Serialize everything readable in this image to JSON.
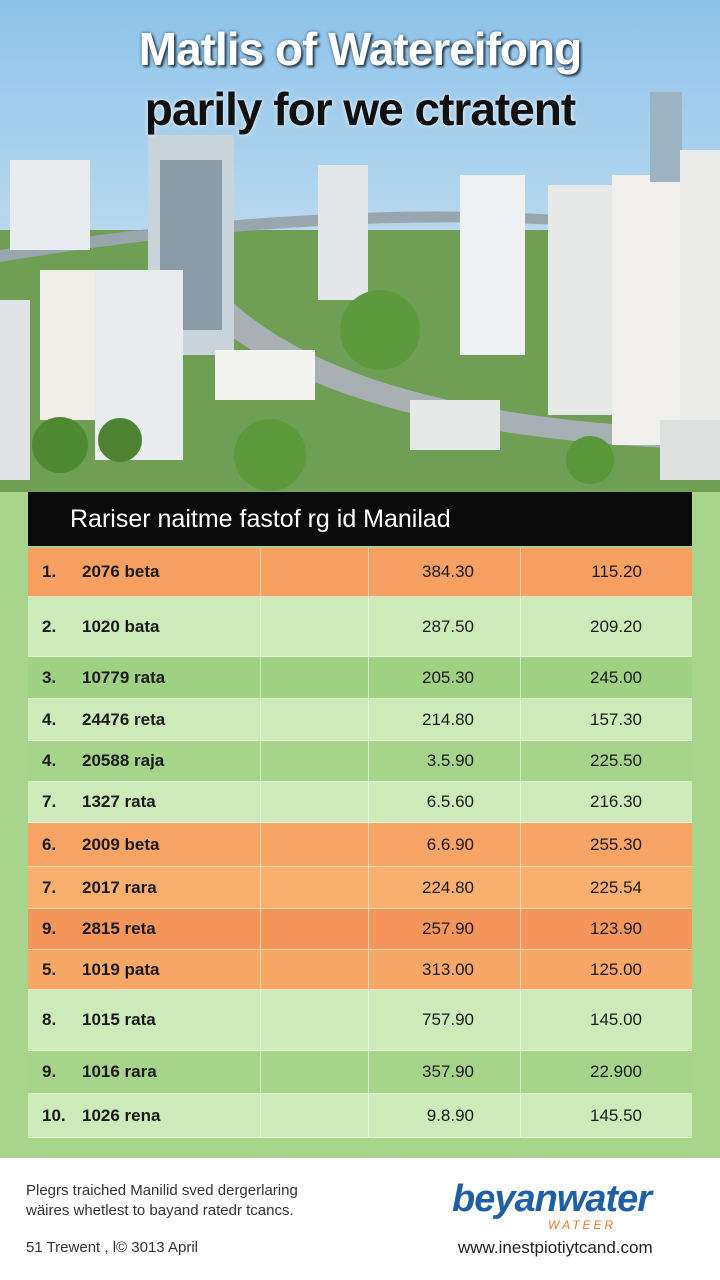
{
  "header": {
    "title_line1": "Matlis of Watereifong",
    "title_line2": "parily for we ctratent"
  },
  "table": {
    "title": "Rariser naitme fastof rg id Manilad",
    "rows": [
      {
        "rank": "1.",
        "label": "2076 beta",
        "value1": "384.30",
        "value2": "115.20",
        "color": "#f7a062"
      },
      {
        "rank": "2.",
        "label": "1020 bata",
        "value1": "287.50",
        "value2": "209.20",
        "color": "#cdeab9"
      },
      {
        "rank": "3.",
        "label": "10779 rata",
        "value1": "205.30",
        "value2": "245.00",
        "color": "#9fd183"
      },
      {
        "rank": "4.",
        "label": "24476 reta",
        "value1": "214.80",
        "value2": "157.30",
        "color": "#cdeab9"
      },
      {
        "rank": "4.",
        "label": "20588 raja",
        "value1": "3.5.90",
        "value2": "225.50",
        "color": "#a6d48a"
      },
      {
        "rank": "7.",
        "label": "1327 rata",
        "value1": "6.5.60",
        "value2": "216.30",
        "color": "#cdeab9"
      },
      {
        "rank": "6.",
        "label": "2009 beta",
        "value1": "6.6.90",
        "value2": "255.30",
        "color": "#f8a464"
      },
      {
        "rank": "7.",
        "label": "2017 rara",
        "value1": "224.80",
        "value2": "225.54",
        "color": "#f9b06f"
      },
      {
        "rank": "9.",
        "label": "2815 reta",
        "value1": "257.90",
        "value2": "123.90",
        "color": "#f4955a"
      },
      {
        "rank": "5.",
        "label": "1019 pata",
        "value1": "313.00",
        "value2": "125.00",
        "color": "#f8a866"
      },
      {
        "rank": "8.",
        "label": "1015 rata",
        "value1": "757.90",
        "value2": "145.00",
        "color": "#cdeab9"
      },
      {
        "rank": "9.",
        "label": "1016 rara",
        "value1": "357.90",
        "value2": "22.900",
        "color": "#a6d48a"
      },
      {
        "rank": "10.",
        "label": "1026 rena",
        "value1": "9.8.90",
        "value2": "145.50",
        "color": "#cdeab9"
      }
    ]
  },
  "footer": {
    "note_line1": "Plegrs traiched Manilid sved dergerlaring",
    "note_line2": "wäires whetlest to bayand ratedr tcancs.",
    "date": "51 Trewent , l© 3013 April",
    "logo": "beyanwater",
    "logo_sub": "WATEER",
    "url": "www.inestpiotiytcand.com"
  }
}
